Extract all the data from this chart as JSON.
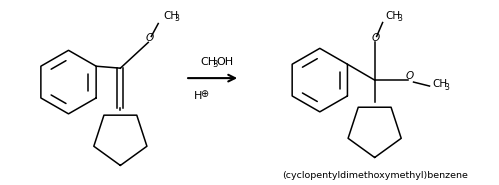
{
  "background_color": "#ffffff",
  "figsize": [
    4.99,
    1.85
  ],
  "dpi": 100,
  "reagent_line1": "CH3OH",
  "reagent_line2": "H",
  "product_label": "(cyclopentyldimethoxymethyl)benzene",
  "lw": 1.1
}
